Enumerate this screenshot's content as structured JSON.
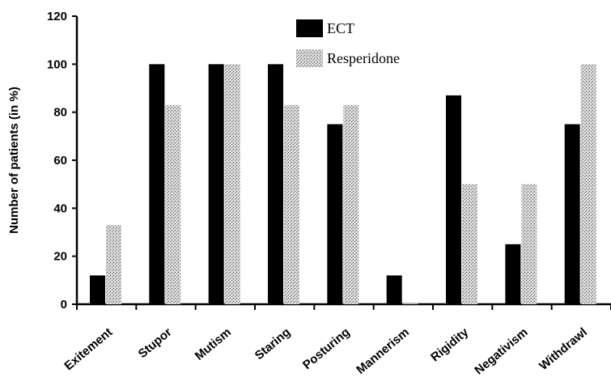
{
  "chart_data": {
    "type": "bar",
    "title": "",
    "xlabel": "",
    "ylabel": "Number of patients (in %)",
    "ylim": [
      0,
      120
    ],
    "yticks": [
      0,
      20,
      40,
      60,
      80,
      100,
      120
    ],
    "grid": false,
    "legend_position": "top-center",
    "categories": [
      "Exitement",
      "Stupor",
      "Mutism",
      "Staring",
      "Posturing",
      "Mannerism",
      "Rigidity",
      "Negativism",
      "Withdrawl"
    ],
    "series": [
      {
        "name": "ECT",
        "values": [
          12,
          100,
          100,
          100,
          75,
          12,
          87,
          25,
          75
        ],
        "color": "#000000"
      },
      {
        "name": "Resperidone",
        "values": [
          33,
          83,
          100,
          83,
          83,
          0,
          50,
          50,
          100
        ],
        "color": "#9a9a9a"
      }
    ]
  }
}
